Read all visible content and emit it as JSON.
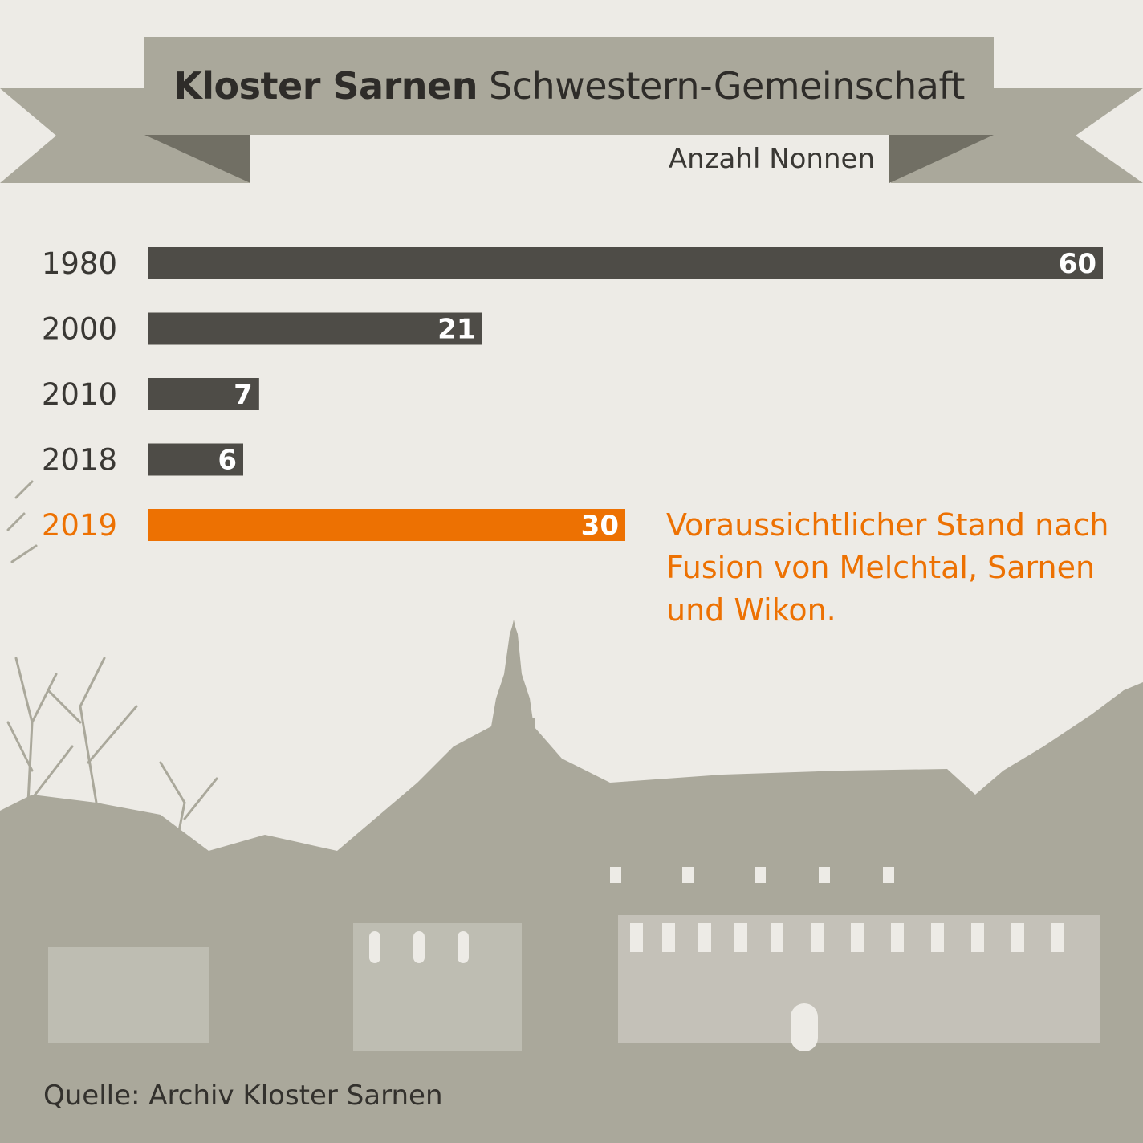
{
  "title": {
    "bold": "Kloster Sarnen",
    "regular": "Schwestern-Gemeinschaft"
  },
  "subtitle": "Anzahl Nonnen",
  "note": "Voraussichtlicher Stand nach Fusion von Melchtal, Sarnen und Wikon.",
  "source": "Quelle: Archiv Kloster Sarnen",
  "colors": {
    "background": "#edebe6",
    "bar": "#4e4c47",
    "highlight": "#ed7102",
    "ribbon": "#aaa89b",
    "ribbon_dark": "#716f64",
    "illustration": "#aaa89b"
  },
  "chart_data": {
    "type": "bar",
    "orientation": "horizontal",
    "title": "Kloster Sarnen Schwestern-Gemeinschaft",
    "subtitle": "Anzahl Nonnen",
    "categories": [
      "1980",
      "2000",
      "2010",
      "2018",
      "2019"
    ],
    "values": [
      60,
      21,
      7,
      6,
      30
    ],
    "highlight": [
      "2019"
    ],
    "xlim": [
      0,
      60
    ],
    "grid": false,
    "legend": "none",
    "annotation": "Voraussichtlicher Stand nach Fusion von Melchtal, Sarnen und Wikon."
  }
}
